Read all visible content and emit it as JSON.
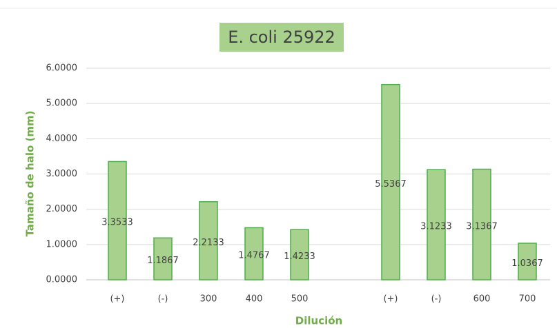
{
  "chart_data": {
    "type": "bar",
    "title": "E. coli 25922",
    "categories": [
      "(+)",
      "(-)",
      "300",
      "400",
      "500",
      null,
      "(+)",
      "(-)",
      "600",
      "700"
    ],
    "values": [
      3.3533,
      1.1867,
      2.2133,
      1.4767,
      1.4233,
      null,
      5.5367,
      3.1233,
      3.1367,
      1.0367
    ],
    "color": "#a9d18e",
    "edge_color": "#4cae4c",
    "ylim": [
      0,
      6
    ],
    "yticks": [
      {
        "value": 0,
        "label": "0.0000"
      },
      {
        "value": 1,
        "label": "1.0000"
      },
      {
        "value": 2,
        "label": "2.0000"
      },
      {
        "value": 3,
        "label": "3.0000"
      },
      {
        "value": 4,
        "label": "4.0000"
      },
      {
        "value": 5,
        "label": "5.0000"
      },
      {
        "value": 6,
        "label": "6.0000"
      }
    ],
    "grid": true,
    "x_label": "Dilución",
    "y_label": "Tamaño de halo (mm)"
  }
}
